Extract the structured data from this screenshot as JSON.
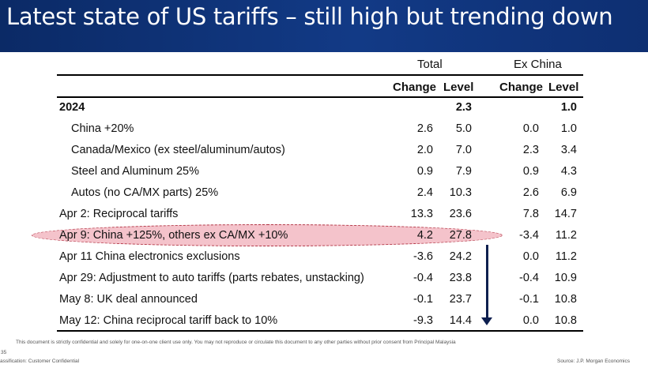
{
  "title": "Latest state of US tariffs – still high but trending down",
  "headers": {
    "group_total": "Total",
    "group_ex_china": "Ex China",
    "change": "Change",
    "level": "Level"
  },
  "rows": [
    {
      "label": "2024",
      "change": "",
      "level": "2.3",
      "ex_change": "",
      "ex_level": "1.0",
      "bold": true,
      "indent": false
    },
    {
      "label": "China +20%",
      "change": "2.6",
      "level": "5.0",
      "ex_change": "0.0",
      "ex_level": "1.0",
      "bold": false,
      "indent": true
    },
    {
      "label": "Canada/Mexico (ex steel/aluminum/autos)",
      "change": "2.0",
      "level": "7.0",
      "ex_change": "2.3",
      "ex_level": "3.4",
      "bold": false,
      "indent": true
    },
    {
      "label": "Steel and Aluminum 25%",
      "change": "0.9",
      "level": "7.9",
      "ex_change": "0.9",
      "ex_level": "4.3",
      "bold": false,
      "indent": true
    },
    {
      "label": "Autos (no CA/MX parts) 25%",
      "change": "2.4",
      "level": "10.3",
      "ex_change": "2.6",
      "ex_level": "6.9",
      "bold": false,
      "indent": true
    },
    {
      "label": "Apr 2: Reciprocal tariffs",
      "change": "13.3",
      "level": "23.6",
      "ex_change": "7.8",
      "ex_level": "14.7",
      "bold": false,
      "indent": false
    },
    {
      "label": "Apr 9: China +125%, others ex CA/MX +10%",
      "change": "4.2",
      "level": "27.8",
      "ex_change": "-3.4",
      "ex_level": "11.2",
      "bold": false,
      "indent": false
    },
    {
      "label": "Apr 11 China electronics exclusions",
      "change": "-3.6",
      "level": "24.2",
      "ex_change": "0.0",
      "ex_level": "11.2",
      "bold": false,
      "indent": false
    },
    {
      "label": "Apr 29: Adjustment to auto tariffs (parts rebates, unstacking)",
      "change": "-0.4",
      "level": "23.8",
      "ex_change": "-0.4",
      "ex_level": "10.9",
      "bold": false,
      "indent": false
    },
    {
      "label": "May 8: UK deal announced",
      "change": "-0.1",
      "level": "23.7",
      "ex_change": "-0.1",
      "ex_level": "10.8",
      "bold": false,
      "indent": false
    },
    {
      "label": "May 12: China reciprocal tariff back to 10%",
      "change": "-9.3",
      "level": "14.4",
      "ex_change": "0.0",
      "ex_level": "10.8",
      "bold": false,
      "indent": false
    }
  ],
  "footer": {
    "disclaimer": "This document is strictly confidential and solely for one-on-one client use only. You may not reproduce or circulate this document to any other parties without prior consent from Principal Malaysia",
    "page_number": "35",
    "classification": "assification: Customer Confidential",
    "source": "Source: J.P. Morgan Economics"
  }
}
